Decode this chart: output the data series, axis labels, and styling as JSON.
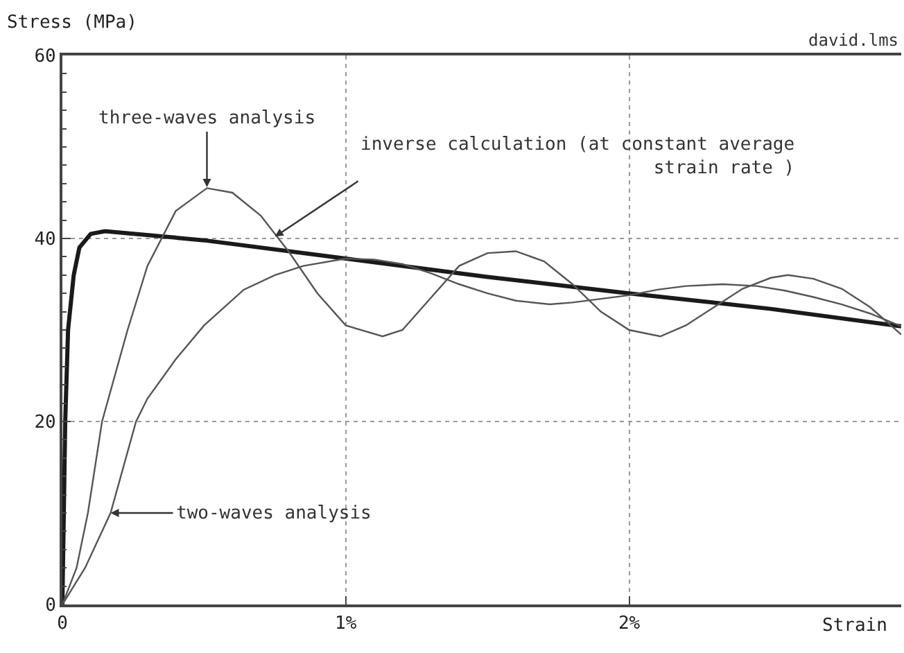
{
  "chart_data": {
    "type": "line",
    "ylabel": "Stress (MPa)",
    "xlabel": "Strain",
    "xlim": [
      0,
      2.96
    ],
    "xticks": [
      0,
      {
        "value": 1,
        "label": "1%"
      },
      {
        "value": 2,
        "label": "2%"
      }
    ],
    "ylim": [
      0,
      60
    ],
    "yticks": [
      0,
      20,
      40,
      60
    ],
    "grid": true,
    "marker": "none",
    "line_style": "solid",
    "series": [
      {
        "color": "#1a1a1a",
        "x": [
          0,
          0.005,
          0.01,
          0.02,
          0.04,
          0.06,
          0.1,
          0.15,
          0.5,
          1,
          1.5,
          2,
          2.5,
          2.96
        ],
        "values": [
          0,
          10,
          20,
          30,
          36,
          39,
          40.5,
          40.8,
          39.8,
          37.8,
          35.8,
          34,
          32.3,
          30.4
        ]
      },
      {
        "color": "#555555",
        "x": [
          0,
          0.05,
          0.09,
          0.14,
          0.23,
          0.3,
          0.4,
          0.51,
          0.6,
          0.7,
          0.8,
          0.9,
          1,
          1.13,
          1.2,
          1.3,
          1.4,
          1.5,
          1.6,
          1.7,
          1.8,
          1.9,
          2,
          2.11,
          2.2,
          2.3,
          2.4,
          2.5,
          2.56,
          2.65,
          2.75,
          2.85,
          2.96
        ],
        "values": [
          0,
          4,
          10,
          20,
          30,
          37,
          43,
          45.5,
          45,
          42.5,
          38.5,
          34,
          30.5,
          29.3,
          30,
          33.5,
          37,
          38.4,
          38.6,
          37.5,
          35,
          32,
          30,
          29.3,
          30.5,
          32.5,
          34.5,
          35.7,
          36,
          35.6,
          34.5,
          32.5,
          29.5
        ]
      },
      {
        "color": "#555555",
        "x": [
          0,
          0.08,
          0.17,
          0.26,
          0.3,
          0.4,
          0.5,
          0.64,
          0.75,
          0.85,
          1,
          1.1,
          1.2,
          1.3,
          1.4,
          1.5,
          1.6,
          1.72,
          1.8,
          1.9,
          2,
          2.1,
          2.2,
          2.33,
          2.45,
          2.55,
          2.65,
          2.75,
          2.85,
          2.96
        ],
        "values": [
          0,
          4,
          10,
          20,
          22.5,
          26.8,
          30.5,
          34.4,
          36,
          37,
          37.8,
          37.7,
          37.2,
          36.2,
          35,
          34,
          33.2,
          32.8,
          33,
          33.4,
          33.8,
          34.4,
          34.8,
          35,
          34.8,
          34.3,
          33.6,
          32.8,
          31.8,
          30.4
        ]
      }
    ],
    "annotations": [
      {
        "text": "three-waves analysis",
        "x": 0.51,
        "y": 45.6
      },
      {
        "text": "inverse calculation (at constant average\nstrain rate )",
        "x": 0.75,
        "y": 40.2
      },
      {
        "text": "two-waves analysis",
        "x": 0.17,
        "y": 10
      },
      "david.lms"
    ]
  }
}
